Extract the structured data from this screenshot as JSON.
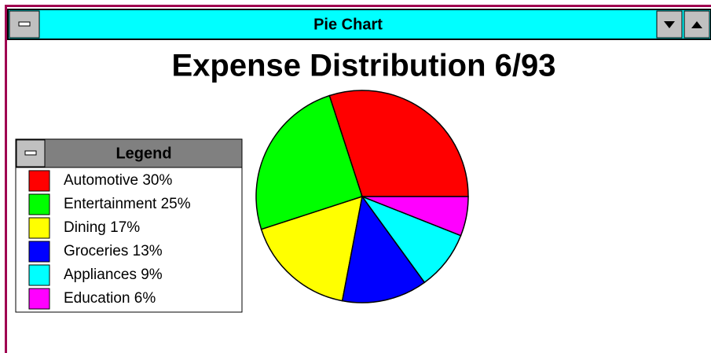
{
  "window": {
    "title": "Pie Chart"
  },
  "chart_data": {
    "type": "pie",
    "title": "Expense Distribution 6/93",
    "legend_title": "Legend",
    "categories": [
      "Automotive",
      "Entertainment",
      "Dining",
      "Groceries",
      "Appliances",
      "Education"
    ],
    "values": [
      30,
      25,
      17,
      13,
      9,
      6
    ],
    "value_labels": [
      "30%",
      "25%",
      "17%",
      "13%",
      "9%",
      "6%"
    ],
    "colors": [
      "#ff0000",
      "#00ff00",
      "#ffff00",
      "#0000ff",
      "#00ffff",
      "#ff00ff"
    ]
  }
}
